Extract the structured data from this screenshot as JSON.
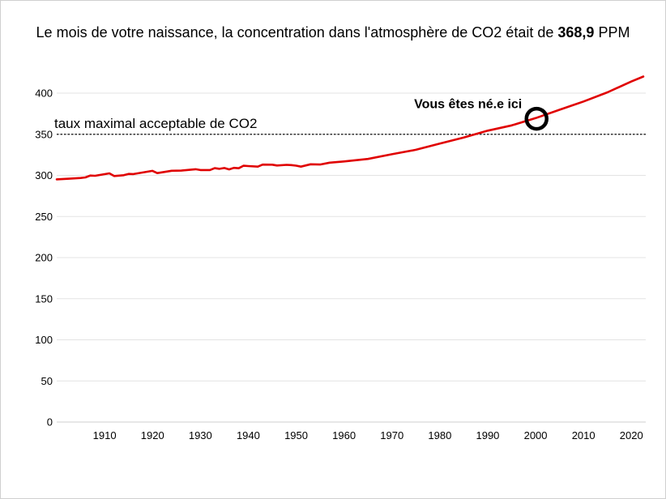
{
  "header": {
    "title_prefix": "Le mois de votre naissance, la concentration dans l'atmosphère de CO2 était de",
    "title_value": "368,9",
    "title_unit": "PPM"
  },
  "chart_data": {
    "type": "line",
    "title": "Le mois de votre naissance, la concentration dans l'atmosphère de CO2 était de 368,9 PPM",
    "xlabel": "",
    "ylabel": "",
    "xlim": [
      1900,
      2023
    ],
    "ylim": [
      0,
      400
    ],
    "grid": true,
    "x_ticks": [
      1910,
      1920,
      1930,
      1940,
      1950,
      1960,
      1970,
      1980,
      1990,
      2000,
      2010,
      2020
    ],
    "y_ticks": [
      0,
      50,
      100,
      150,
      200,
      250,
      300,
      350,
      400
    ],
    "series_color": "#e00000",
    "x": [
      1900,
      1903,
      1905,
      1906,
      1907,
      1908,
      1910,
      1911,
      1912,
      1914,
      1915,
      1916,
      1920,
      1921,
      1924,
      1926,
      1929,
      1930,
      1932,
      1933,
      1934,
      1935,
      1936,
      1937,
      1938,
      1939,
      1940,
      1942,
      1943,
      1945,
      1946,
      1948,
      1949,
      1950,
      1951,
      1953,
      1955,
      1957,
      1960,
      1965,
      1970,
      1975,
      1980,
      1985,
      1990,
      1995,
      2000,
      2005,
      2010,
      2015,
      2020,
      2022.5
    ],
    "values": [
      295.2,
      296.2,
      296.8,
      297.5,
      299.8,
      299.5,
      301.5,
      302.5,
      299.2,
      300.2,
      301.8,
      301.6,
      305.5,
      302.8,
      305.6,
      305.8,
      307.5,
      306.5,
      306.5,
      308.8,
      308.0,
      309.0,
      307.3,
      309.2,
      308.7,
      311.7,
      311.3,
      310.6,
      313.1,
      313.0,
      312.0,
      312.8,
      312.5,
      311.8,
      310.6,
      313.5,
      313.2,
      315.5,
      316.9,
      320.0,
      325.7,
      331.1,
      338.7,
      346.0,
      354.4,
      360.8,
      369.7,
      379.8,
      389.9,
      401.0,
      414.2,
      420.2
    ],
    "threshold": {
      "value": 350,
      "label": "taux maximal acceptable de CO2"
    },
    "birth_marker": {
      "x": 2000.2,
      "y": 368.9,
      "label": "Vous êtes né.e ici"
    }
  }
}
